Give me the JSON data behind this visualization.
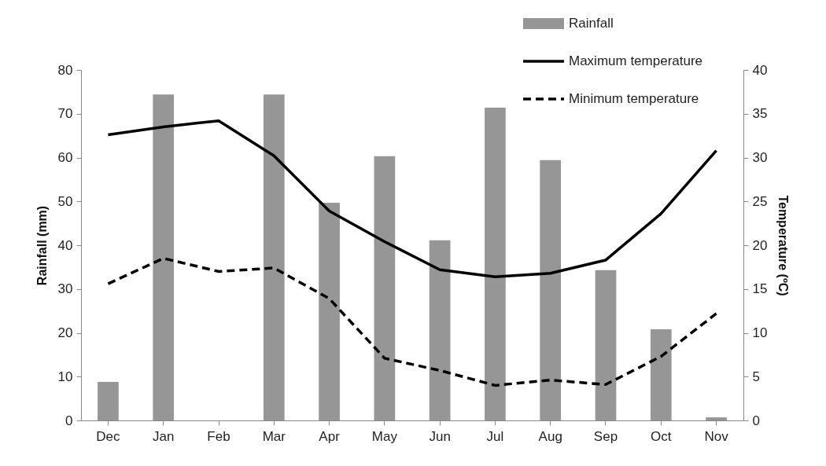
{
  "chart_data": {
    "type": "bar",
    "categories": [
      "Dec",
      "Jan",
      "Feb",
      "Mar",
      "Apr",
      "May",
      "Jun",
      "Jul",
      "Aug",
      "Sep",
      "Oct",
      "Nov"
    ],
    "ylabel": "Rainfall (mm)",
    "y2label": "Temperature (ºC)",
    "ylim": [
      0,
      80
    ],
    "yticks": [
      0,
      10,
      20,
      30,
      40,
      50,
      60,
      70,
      80
    ],
    "y2lim": [
      0,
      40
    ],
    "y2ticks": [
      0,
      5,
      10,
      15,
      20,
      25,
      30,
      35,
      40
    ],
    "grid": false,
    "legend": "top right",
    "series": [
      {
        "name": "Rainfall",
        "color": "#969696",
        "values": [
          8.8,
          74.4,
          0,
          74.4,
          49.7,
          60.3,
          41.1,
          71.4,
          59.4,
          34.3,
          20.8,
          0.7
        ]
      },
      {
        "name": "Maximum temperature",
        "type": "line",
        "axis": "y2",
        "color": "#000000",
        "line_style": "solid",
        "values": [
          32.6,
          33.5,
          34.2,
          30.2,
          23.9,
          20.4,
          17.2,
          16.4,
          16.8,
          18.3,
          23.6,
          30.8
        ]
      },
      {
        "name": "Minimum temperature",
        "type": "line",
        "axis": "y2",
        "color": "#000000",
        "line_style": "dashed",
        "values": [
          15.6,
          18.5,
          17.0,
          17.4,
          13.9,
          7.1,
          5.7,
          4.0,
          4.6,
          4.1,
          7.3,
          12.2
        ]
      }
    ]
  }
}
